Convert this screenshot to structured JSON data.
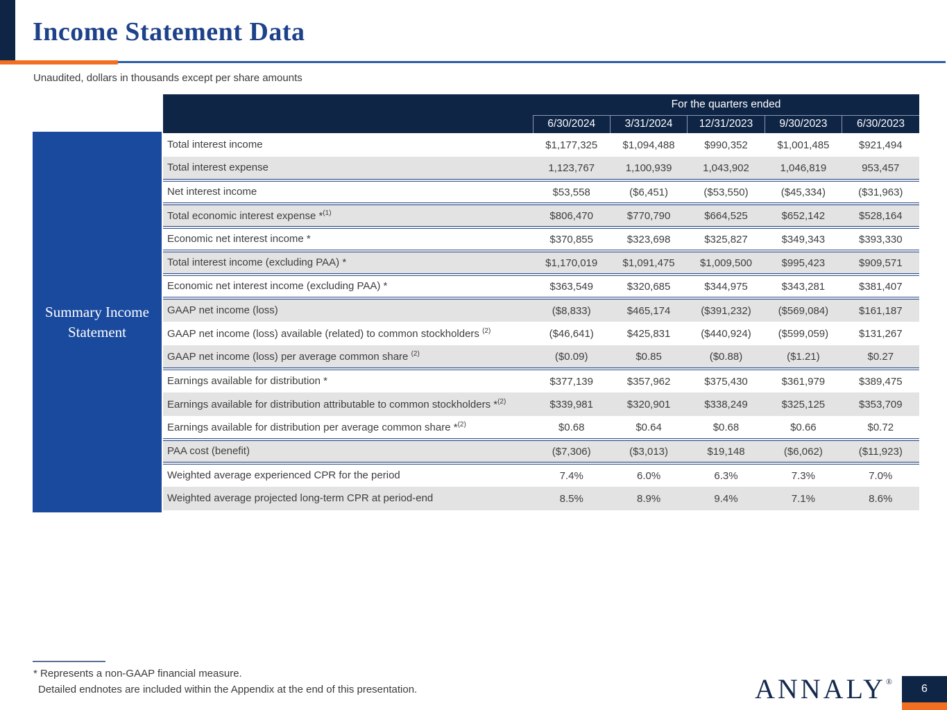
{
  "page": {
    "title": "Income Statement Data",
    "subtitle": "Unaudited, dollars in thousands except per share amounts",
    "page_number": "6",
    "logo_text": "ANNALY",
    "logo_mark": "®"
  },
  "table": {
    "row_group_label": "Summary Income Statement",
    "quarters_header": "For the quarters ended",
    "columns": [
      "6/30/2024",
      "3/31/2024",
      "12/31/2023",
      "9/30/2023",
      "6/30/2023"
    ],
    "rows": [
      {
        "label": "Total interest income",
        "sup": "",
        "values": [
          "$1,177,325",
          "$1,094,488",
          "$990,352",
          "$1,001,485",
          "$921,494"
        ],
        "sep_below": false
      },
      {
        "label": "Total interest expense",
        "sup": "",
        "values": [
          "1,123,767",
          "1,100,939",
          "1,043,902",
          "1,046,819",
          "953,457"
        ],
        "sep_below": true
      },
      {
        "label": "Net interest income",
        "sup": "",
        "values": [
          "$53,558",
          "($6,451)",
          "($53,550)",
          "($45,334)",
          "($31,963)"
        ],
        "sep_below": true
      },
      {
        "label": "Total economic interest expense *",
        "sup": "(1)",
        "values": [
          "$806,470",
          "$770,790",
          "$664,525",
          "$652,142",
          "$528,164"
        ],
        "sep_below": true
      },
      {
        "label": "Economic net interest income *",
        "sup": "",
        "values": [
          "$370,855",
          "$323,698",
          "$325,827",
          "$349,343",
          "$393,330"
        ],
        "sep_below": true
      },
      {
        "label": "Total interest income (excluding PAA) *",
        "sup": "",
        "values": [
          "$1,170,019",
          "$1,091,475",
          "$1,009,500",
          "$995,423",
          "$909,571"
        ],
        "sep_below": true
      },
      {
        "label": "Economic net interest income (excluding PAA) *",
        "sup": "",
        "values": [
          "$363,549",
          "$320,685",
          "$344,975",
          "$343,281",
          "$381,407"
        ],
        "sep_below": true
      },
      {
        "label": "GAAP net income (loss)",
        "sup": "",
        "values": [
          "($8,833)",
          "$465,174",
          "($391,232)",
          "($569,084)",
          "$161,187"
        ],
        "sep_below": false
      },
      {
        "label": "GAAP net income (loss) available (related) to common stockholders ",
        "sup": "(2)",
        "values": [
          "($46,641)",
          "$425,831",
          "($440,924)",
          "($599,059)",
          "$131,267"
        ],
        "sep_below": false
      },
      {
        "label": "GAAP net income (loss) per average common share ",
        "sup": "(2)",
        "values": [
          "($0.09)",
          "$0.85",
          "($0.88)",
          "($1.21)",
          "$0.27"
        ],
        "sep_below": true
      },
      {
        "label": "Earnings available for distribution *",
        "sup": "",
        "values": [
          "$377,139",
          "$357,962",
          "$375,430",
          "$361,979",
          "$389,475"
        ],
        "sep_below": false
      },
      {
        "label": "Earnings available for distribution attributable to common stockholders *",
        "sup": "(2)",
        "values": [
          "$339,981",
          "$320,901",
          "$338,249",
          "$325,125",
          "$353,709"
        ],
        "sep_below": false
      },
      {
        "label": "Earnings available for distribution per average common share *",
        "sup": "(2)",
        "values": [
          "$0.68",
          "$0.64",
          "$0.68",
          "$0.66",
          "$0.72"
        ],
        "sep_below": true
      },
      {
        "label": "PAA cost (benefit)",
        "sup": "",
        "values": [
          "($7,306)",
          "($3,013)",
          "$19,148",
          "($6,062)",
          "($11,923)"
        ],
        "sep_below": true
      },
      {
        "label": "Weighted average experienced CPR for the period",
        "sup": "",
        "values": [
          "7.4%",
          "6.0%",
          "6.3%",
          "7.3%",
          "7.0%"
        ],
        "sep_below": false
      },
      {
        "label": "Weighted average projected long-term CPR at period-end",
        "sup": "",
        "values": [
          "8.5%",
          "8.9%",
          "9.4%",
          "7.1%",
          "8.6%"
        ],
        "sep_below": false
      }
    ]
  },
  "footnotes": {
    "line1": "* Represents a non-GAAP financial measure.",
    "line2": "Detailed endnotes are included within the Appendix at the end of this presentation."
  },
  "colors": {
    "navy": "#0F2546",
    "royal_blue": "#1A4A9E",
    "orange": "#F26F21",
    "title_blue": "#1D4289",
    "divider_blue": "#2B5CA8",
    "row_shade": "#E3E3E3",
    "separator_blue": "#2A4A8C"
  }
}
